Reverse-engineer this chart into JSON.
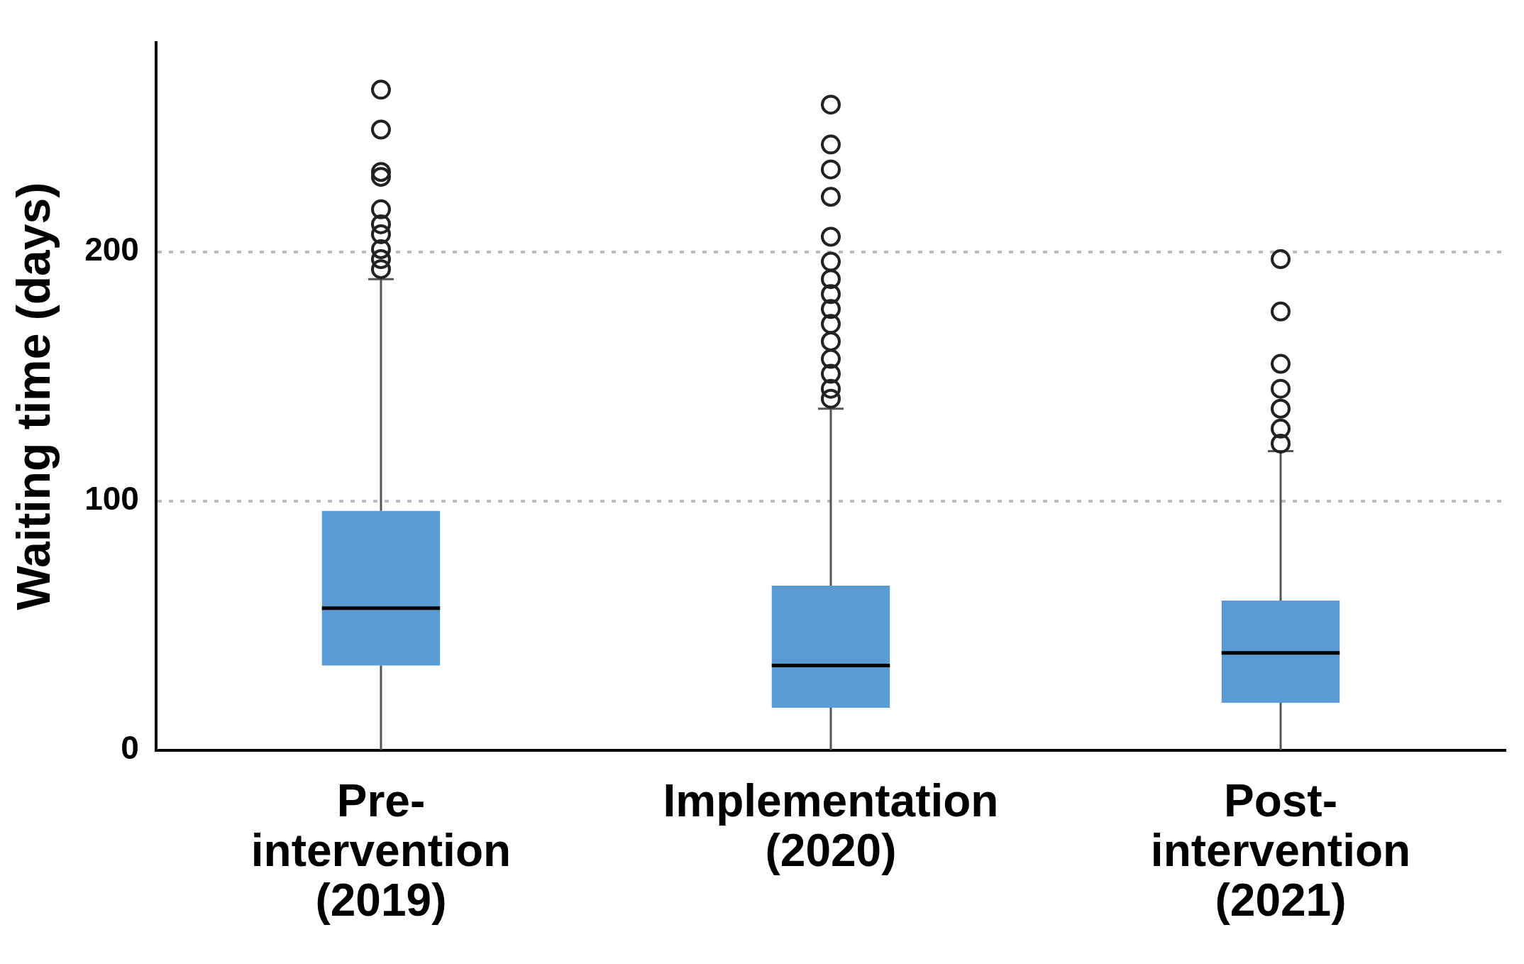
{
  "chart_data": {
    "type": "box",
    "ylabel": "Waiting time (days)",
    "categories": [
      "Pre-intervention (2019)",
      "Implementation (2020)",
      "Post-intervention (2021)"
    ],
    "color": "#5b9bd5",
    "ylim": [
      0,
      284
    ],
    "yticks": [
      0,
      100,
      200
    ],
    "grid": "y",
    "legend": false,
    "marker": "circle",
    "boxes": [
      {
        "low": 0,
        "q1": 34,
        "median": 57,
        "q3": 96,
        "high": 189,
        "outliers": [
          193,
          197,
          201,
          207,
          211,
          217,
          230,
          232,
          249,
          265
        ]
      },
      {
        "low": 0,
        "q1": 17,
        "median": 34,
        "q3": 66,
        "high": 137,
        "outliers": [
          141,
          145,
          151,
          157,
          164,
          171,
          177,
          183,
          189,
          196,
          206,
          222,
          233,
          243,
          259
        ]
      },
      {
        "low": 0,
        "q1": 19,
        "median": 39,
        "q3": 60,
        "high": 120,
        "outliers": [
          123,
          129,
          137,
          145,
          155,
          176,
          197
        ]
      }
    ]
  }
}
